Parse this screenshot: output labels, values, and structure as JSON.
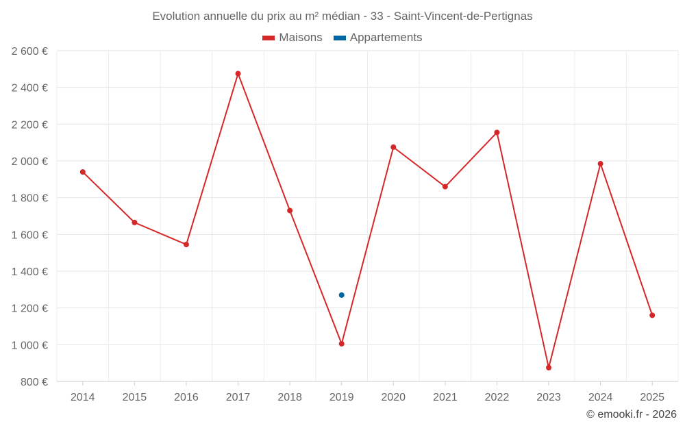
{
  "chart_data": {
    "type": "line",
    "title": "Evolution annuelle du prix au m² médian - 33 - Saint-Vincent-de-Pertignas",
    "categories": [
      "2014",
      "2015",
      "2016",
      "2017",
      "2018",
      "2019",
      "2020",
      "2021",
      "2022",
      "2023",
      "2024",
      "2025"
    ],
    "series": [
      {
        "name": "Maisons",
        "color": "#d62728",
        "values": [
          1940,
          1665,
          1545,
          2475,
          1730,
          1005,
          2075,
          1860,
          2155,
          875,
          1985,
          1160
        ]
      },
      {
        "name": "Appartements",
        "color": "#0066a1",
        "values": [
          null,
          null,
          null,
          null,
          null,
          1270,
          null,
          null,
          null,
          null,
          null,
          null
        ]
      }
    ],
    "ylim": [
      800,
      2600
    ],
    "yticks": [
      2600,
      2400,
      2200,
      2000,
      1800,
      1600,
      1400,
      1200,
      1000,
      800
    ],
    "ytick_labels": [
      "2 600 €",
      "2 400 €",
      "2 200 €",
      "2 000 €",
      "1 800 €",
      "1 600 €",
      "1 400 €",
      "1 200 €",
      "1 000 €",
      "800 €"
    ],
    "grid": true,
    "legend_position": "top-center"
  },
  "copyright": "© emooki.fr - 2026"
}
